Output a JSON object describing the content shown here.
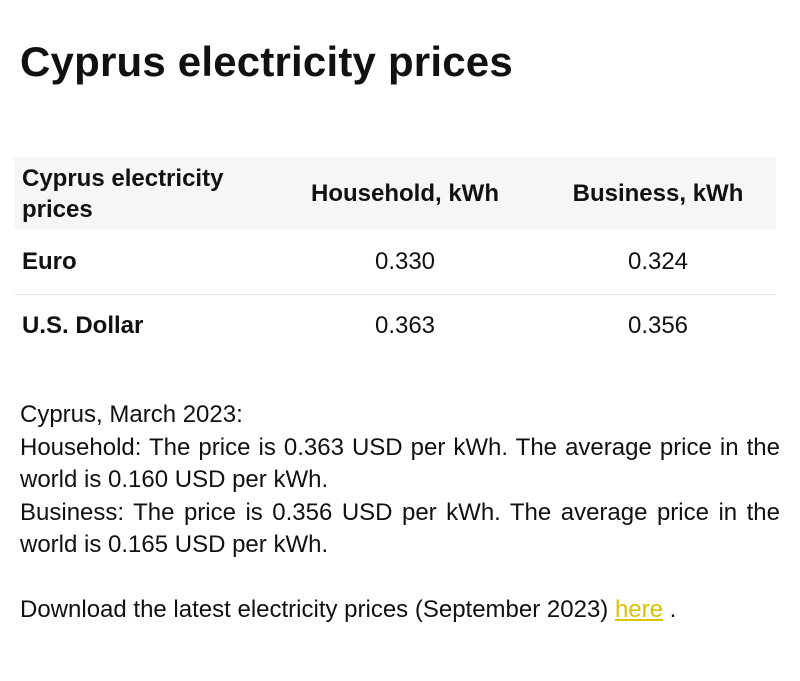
{
  "page": {
    "title": "Cyprus electricity prices"
  },
  "table": {
    "headers": {
      "label": "Cyprus electricity prices",
      "household": "Household, kWh",
      "business": "Business, kWh"
    },
    "rows": [
      {
        "currency": "Euro",
        "household": "0.330",
        "business": "0.324"
      },
      {
        "currency": "U.S. Dollar",
        "household": "0.363",
        "business": "0.356"
      }
    ]
  },
  "summary": {
    "heading": "Cyprus, March 2023:",
    "household": "Household: The price is 0.363 USD per kWh. The average price in the world is 0.160 USD per kWh.",
    "business": "Business: The price is 0.356 USD per kWh. The average price in the world is 0.165 USD per kWh.",
    "download_text": "Download the latest electricity prices (September 2023) ",
    "download_link": "here",
    "download_suffix": " ."
  },
  "colors": {
    "link": "#d8c400",
    "header_background": "#f6f6f6"
  }
}
